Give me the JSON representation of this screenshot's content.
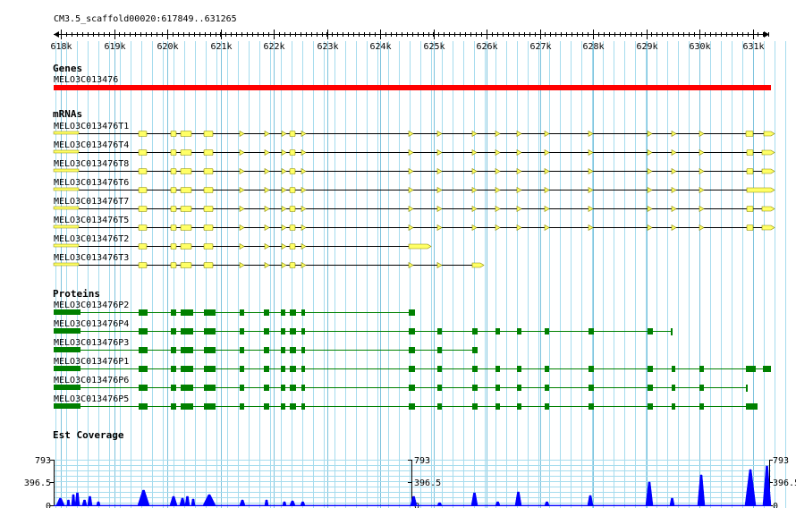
{
  "ruler": {
    "region_label": "CM3.5_scaffold00020:617849..631265",
    "tick_labels": [
      "618k",
      "619k",
      "620k",
      "621k",
      "622k",
      "623k",
      "624k",
      "625k",
      "626k",
      "627k",
      "628k",
      "629k",
      "630k",
      "631k"
    ]
  },
  "genes": {
    "title": "Genes",
    "items": [
      {
        "name": "MELO3C013476"
      }
    ]
  },
  "mrnas": {
    "title": "mRNAs",
    "items": [
      {
        "name": "MELO3C013476T1"
      },
      {
        "name": "MELO3C013476T4"
      },
      {
        "name": "MELO3C013476T8"
      },
      {
        "name": "MELO3C013476T6"
      },
      {
        "name": "MELO3C013476T7"
      },
      {
        "name": "MELO3C013476T5"
      },
      {
        "name": "MELO3C013476T2"
      },
      {
        "name": "MELO3C013476T3"
      }
    ]
  },
  "proteins": {
    "title": "Proteins",
    "items": [
      {
        "name": "MELO3C013476P2"
      },
      {
        "name": "MELO3C013476P4"
      },
      {
        "name": "MELO3C013476P3"
      },
      {
        "name": "MELO3C013476P1"
      },
      {
        "name": "MELO3C013476P6"
      },
      {
        "name": "MELO3C013476P5"
      }
    ]
  },
  "coverage": {
    "title": "Est Coverage",
    "scale_labels": {
      "max": "793",
      "mid": "396.5",
      "min": "0"
    }
  },
  "colors": {
    "gene": "#ff0000",
    "mrna_exon": "#ffff66",
    "mrna_edge": "#888800",
    "protein": "#008000",
    "coverage": "#0000ff",
    "grid": "#a6dcee"
  }
}
